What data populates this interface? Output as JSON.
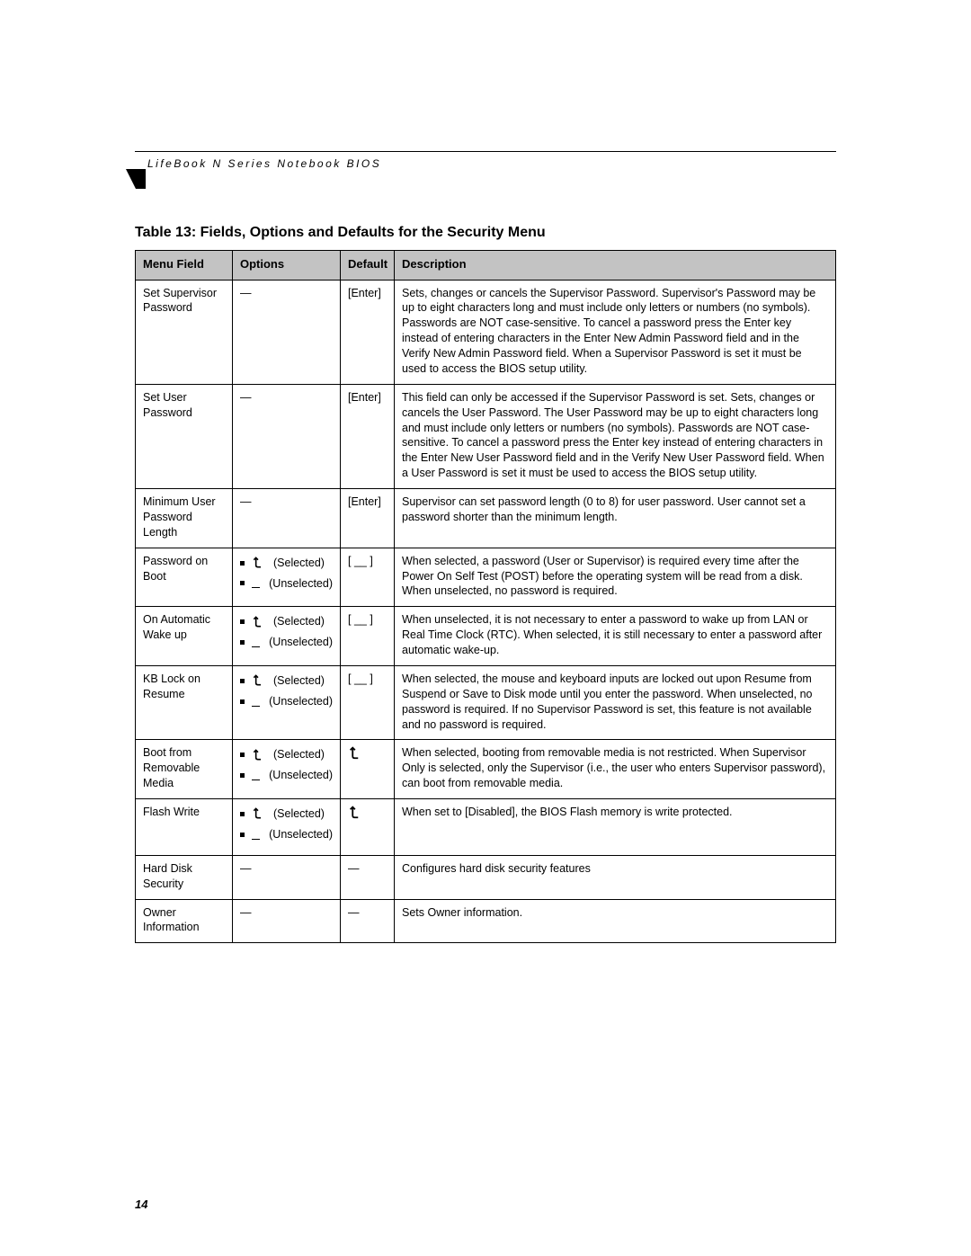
{
  "header": {
    "running_title": "LifeBook N Series Notebook BIOS"
  },
  "table": {
    "title": "Table 13: Fields, Options and Defaults for the Security Menu",
    "columns": {
      "menu_field": "Menu Field",
      "options": "Options",
      "default": "Default",
      "description": "Description"
    },
    "option_labels": {
      "selected": "(Selected)",
      "unselected": "(Unselected)"
    },
    "mdash": "—",
    "bracket_blank": "[ __ ]",
    "rows": [
      {
        "field": "Set Supervisor Password",
        "options_type": "dash",
        "default_type": "text",
        "default": "[Enter]",
        "desc": "Sets, changes or cancels the Supervisor Password. Supervisor's Password may be up to eight characters long and must include only letters or numbers (no symbols). Passwords are NOT case-sensitive. To cancel a password press the Enter key instead of entering characters in the Enter New Admin Password field and in the Verify New Admin Password field. When a Supervisor Password is set it must be used to access the BIOS setup utility."
      },
      {
        "field": "Set User Password",
        "options_type": "dash",
        "default_type": "text",
        "default": "[Enter]",
        "desc": "This field can only be accessed if the Supervisor Password is set. Sets, changes or cancels the User Password. The User Password may be up to eight characters long and must include only letters or numbers (no symbols). Passwords are NOT case-sensitive. To cancel a password press the Enter key instead of entering characters in the Enter New User Password field and in the Verify New User Password field. When a User Password is set it must be used to access the BIOS setup utility."
      },
      {
        "field": "Minimum User Password Length",
        "options_type": "dash",
        "default_type": "text",
        "default": "[Enter]",
        "desc": "Supervisor can set password length (0 to 8) for user password. User cannot set a password shorter than the minimum length."
      },
      {
        "field": "Password on Boot",
        "options_type": "checks",
        "default_type": "bracket",
        "desc": "When selected, a password (User or Supervisor) is required every time after the Power On Self Test (POST) before the operating system will be read from a disk. When unselected, no password is required."
      },
      {
        "field": "On Automatic Wake up",
        "options_type": "checks",
        "default_type": "bracket",
        "desc": "When unselected, it is not necessary to enter a password to wake up from LAN or Real Time Clock (RTC). When selected, it is still necessary to enter a password after automatic wake-up."
      },
      {
        "field": "KB Lock on Resume",
        "options_type": "checks",
        "default_type": "bracket",
        "desc": "When selected, the mouse and keyboard inputs are locked out upon Resume from Suspend or Save to Disk mode until you enter the password. When unselected, no password is required. If no Supervisor Password is set, this feature is not available and no password is required."
      },
      {
        "field": "Boot from Removable Media",
        "options_type": "checks",
        "default_type": "check",
        "desc": "When selected, booting from removable media is not restricted. When Supervisor Only is selected, only the Supervisor (i.e., the user who enters Supervisor password), can boot from removable media."
      },
      {
        "field": "Flash Write",
        "options_type": "checks",
        "default_type": "check",
        "desc": "When set to [Disabled], the BIOS Flash memory is write protected."
      },
      {
        "field": "Hard Disk Security",
        "options_type": "dash",
        "default_type": "dash",
        "desc": "Configures hard disk security features"
      },
      {
        "field": "Owner Information",
        "options_type": "dash",
        "default_type": "dash",
        "desc": "Sets Owner information."
      }
    ]
  },
  "page_number": "14",
  "style": {
    "header_bg": "#c3c3c3",
    "border_color": "#000000",
    "text_color": "#000000",
    "font_size_body": 12.5,
    "font_size_title": 16
  }
}
